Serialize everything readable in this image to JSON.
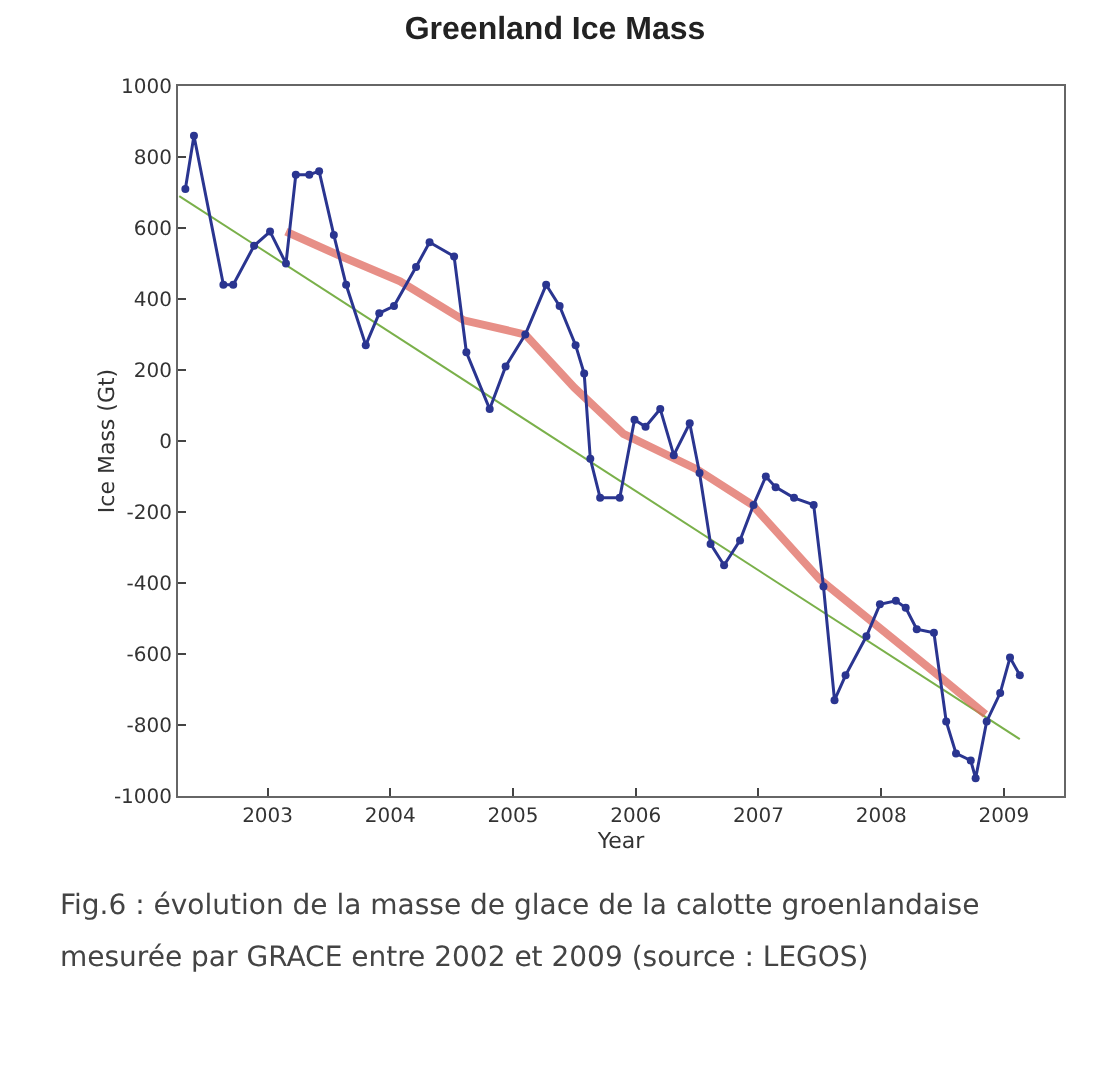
{
  "chart_data": {
    "type": "line",
    "title": "Greenland Ice Mass",
    "xlabel": "Year",
    "ylabel": "Ice Mass (Gt)",
    "annotations": [
      "Fig.6 : évolution de la masse de glace de la calotte groenlandaise mesurée par GRACE entre 2002 et 2009 (source : LEGOS)"
    ],
    "xlim": [
      2002.27,
      2009.49
    ],
    "xticks": [
      2003,
      2004,
      2005,
      2006,
      2007,
      2008,
      2009
    ],
    "ylim": [
      -1000,
      1000
    ],
    "yticks": [
      -1000,
      -800,
      -600,
      -400,
      -200,
      0,
      200,
      400,
      600,
      800,
      1000
    ],
    "grid": false,
    "series": [
      {
        "color": "#2a3590",
        "marker": "circle",
        "x": [
          2002.33,
          2002.4,
          2002.64,
          2002.72,
          2002.89,
          2003.02,
          2003.15,
          2003.23,
          2003.34,
          2003.42,
          2003.54,
          2003.64,
          2003.8,
          2003.91,
          2004.03,
          2004.21,
          2004.32,
          2004.52,
          2004.62,
          2004.81,
          2004.94,
          2005.1,
          2005.27,
          2005.38,
          2005.51,
          2005.58,
          2005.63,
          2005.71,
          2005.87,
          2005.99,
          2006.08,
          2006.2,
          2006.31,
          2006.44,
          2006.52,
          2006.61,
          2006.72,
          2006.85,
          2006.96,
          2007.06,
          2007.14,
          2007.29,
          2007.45,
          2007.53,
          2007.62,
          2007.71,
          2007.88,
          2007.99,
          2008.12,
          2008.2,
          2008.29,
          2008.43,
          2008.53,
          2008.61,
          2008.73,
          2008.77,
          2008.86,
          2008.97,
          2009.05,
          2009.13
        ],
        "values": [
          710,
          860,
          440,
          440,
          550,
          590,
          500,
          750,
          750,
          760,
          580,
          440,
          270,
          360,
          380,
          490,
          560,
          520,
          250,
          90,
          210,
          300,
          440,
          380,
          270,
          190,
          -50,
          -160,
          -160,
          60,
          40,
          90,
          -40,
          50,
          -90,
          -290,
          -350,
          -280,
          -180,
          -100,
          -130,
          -160,
          -180,
          -410,
          -730,
          -660,
          -550,
          -460,
          -450,
          -470,
          -530,
          -540,
          -790,
          -880,
          -900,
          -950,
          -790,
          -710,
          -610,
          -660
        ]
      },
      {
        "color": "#7ab04a",
        "marker": "none",
        "x": [
          2002.28,
          2009.13
        ],
        "values": [
          690,
          -840
        ]
      },
      {
        "color": "#e06a60",
        "marker": "none",
        "x": [
          2003.15,
          2003.6,
          2004.08,
          2004.6,
          2005.1,
          2005.5,
          2005.9,
          2006.5,
          2006.95,
          2007.5,
          2008.0,
          2008.5,
          2008.85
        ],
        "values": [
          590,
          520,
          450,
          340,
          300,
          150,
          20,
          -80,
          -180,
          -390,
          -530,
          -670,
          -770
        ]
      }
    ]
  }
}
